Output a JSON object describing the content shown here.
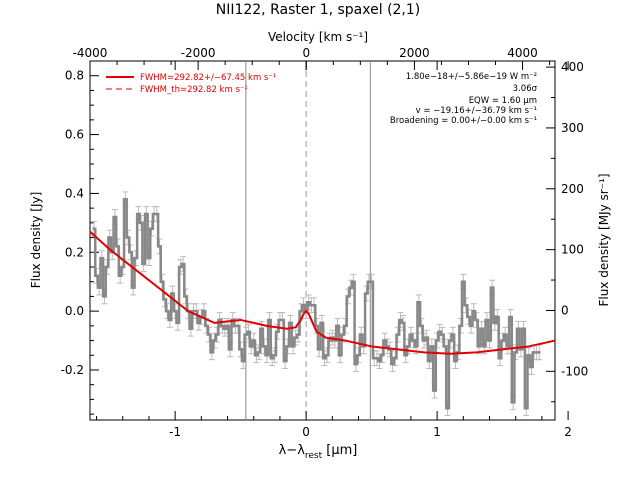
{
  "chart_data": {
    "type": "line",
    "title": "NII122, Raster 1, spaxel (2,1)",
    "xlabel_main": "λ−λ",
    "xlabel_sub": "rest",
    "xlabel_unit": " [μm]",
    "ylabel_left": "Flux density [Jy]",
    "ylabel_right": "Flux density [MJy sr⁻¹]",
    "top_axis_label": "Velocity [km s⁻¹]",
    "xlim": [
      -1.65,
      1.9
    ],
    "ylim": [
      -0.37,
      0.85
    ],
    "top_xlim": [
      -4000,
      4600
    ],
    "right_ylim": [
      -180,
      410
    ],
    "xticks": [
      -1,
      0,
      1,
      2
    ],
    "yticks": [
      -0.2,
      0.0,
      0.2,
      0.4,
      0.6,
      0.8
    ],
    "top_ticks": [
      -4000,
      -2000,
      0,
      2000,
      4000
    ],
    "right_ticks": [
      -100,
      0,
      100,
      200,
      300,
      400
    ],
    "vlines_solid": [
      -0.46,
      0.49
    ],
    "vline_dashed": 0.0,
    "legend": {
      "placement": "top-left",
      "entries": [
        {
          "style": "solid",
          "label": "FWHM=292.82+/−67.45 km s⁻¹"
        },
        {
          "style": "dashed",
          "label": "FWHM_th=292.82 km s⁻¹"
        }
      ]
    },
    "annotations": [
      "1.80e−18+/−5.86e−19 W m⁻²",
      "3.06σ",
      "EQW = 1.60 μm",
      "v = −19.16+/−36.79 km s⁻¹",
      "Broadening = 0.00+/−0.00 km s⁻¹"
    ],
    "series": [
      {
        "style": "step",
        "color": "#888888",
        "x": [
          -1.62,
          -1.6,
          -1.58,
          -1.56,
          -1.54,
          -1.52,
          -1.5,
          -1.48,
          -1.46,
          -1.44,
          -1.42,
          -1.4,
          -1.38,
          -1.36,
          -1.34,
          -1.32,
          -1.3,
          -1.28,
          -1.26,
          -1.24,
          -1.22,
          -1.2,
          -1.18,
          -1.16,
          -1.14,
          -1.12,
          -1.1,
          -1.08,
          -1.06,
          -1.04,
          -1.02,
          -1.0,
          -0.98,
          -0.96,
          -0.94,
          -0.92,
          -0.9,
          -0.88,
          -0.86,
          -0.84,
          -0.82,
          -0.8,
          -0.78,
          -0.76,
          -0.74,
          -0.72,
          -0.7,
          -0.68,
          -0.66,
          -0.64,
          -0.62,
          -0.6,
          -0.58,
          -0.56,
          -0.54,
          -0.52,
          -0.5,
          -0.48,
          -0.46,
          -0.44,
          -0.42,
          -0.4,
          -0.38,
          -0.36,
          -0.34,
          -0.32,
          -0.3,
          -0.28,
          -0.26,
          -0.24,
          -0.22,
          -0.2,
          -0.18,
          -0.16,
          -0.14,
          -0.12,
          -0.1,
          -0.08,
          -0.06,
          -0.04,
          -0.02,
          0.0,
          0.02,
          0.04,
          0.06,
          0.08,
          0.1,
          0.12,
          0.14,
          0.16,
          0.18,
          0.2,
          0.22,
          0.24,
          0.26,
          0.28,
          0.3,
          0.32,
          0.34,
          0.36,
          0.38,
          0.4,
          0.42,
          0.44,
          0.46,
          0.48,
          0.5,
          0.52,
          0.54,
          0.56,
          0.58,
          0.6,
          0.62,
          0.64,
          0.66,
          0.68,
          0.7,
          0.72,
          0.74,
          0.76,
          0.78,
          0.8,
          0.82,
          0.84,
          0.86,
          0.88,
          0.9,
          0.92,
          0.94,
          0.96,
          0.98,
          1.0,
          1.02,
          1.04,
          1.06,
          1.08,
          1.1,
          1.12,
          1.14,
          1.16,
          1.18,
          1.2,
          1.22,
          1.24,
          1.26,
          1.28,
          1.3,
          1.32,
          1.34,
          1.36,
          1.38,
          1.4,
          1.42,
          1.44,
          1.46,
          1.48,
          1.5,
          1.52,
          1.54,
          1.56,
          1.58,
          1.6,
          1.62,
          1.64,
          1.66,
          1.68,
          1.7,
          1.72,
          1.74,
          1.76,
          1.78
        ],
        "y": [
          0.28,
          0.12,
          0.08,
          0.18,
          0.05,
          0.15,
          0.25,
          0.2,
          0.32,
          0.22,
          0.12,
          0.15,
          0.38,
          0.25,
          0.2,
          0.08,
          0.18,
          0.33,
          0.3,
          0.16,
          0.33,
          0.18,
          0.28,
          0.33,
          0.33,
          0.22,
          0.1,
          0.04,
          0.0,
          -0.03,
          0.06,
          0.0,
          -0.04,
          0.15,
          0.16,
          0.05,
          0.0,
          -0.06,
          0.0,
          0.0,
          -0.04,
          -0.02,
          0.0,
          -0.05,
          -0.08,
          -0.14,
          -0.1,
          -0.08,
          -0.03,
          -0.05,
          -0.06,
          -0.05,
          -0.13,
          -0.03,
          -0.05,
          -0.05,
          -0.13,
          -0.17,
          -0.08,
          -0.07,
          -0.12,
          -0.1,
          -0.15,
          -0.14,
          -0.06,
          -0.12,
          -0.15,
          -0.03,
          -0.16,
          -0.15,
          -0.07,
          -0.03,
          -0.03,
          -0.17,
          -0.12,
          -0.04,
          -0.12,
          -0.09,
          -0.08,
          0.0,
          0.02,
          0.0,
          0.03,
          0.02,
          0.02,
          -0.05,
          -0.13,
          -0.04,
          -0.16,
          -0.15,
          -0.1,
          -0.09,
          -0.1,
          -0.05,
          -0.15,
          -0.08,
          -0.05,
          0.05,
          0.08,
          0.1,
          -0.18,
          -0.15,
          -0.08,
          -0.12,
          0.06,
          0.1,
          0.1,
          -0.16,
          -0.16,
          -0.17,
          -0.15,
          -0.1,
          -0.12,
          -0.13,
          -0.18,
          -0.16,
          -0.08,
          -0.03,
          -0.04,
          -0.15,
          -0.12,
          -0.08,
          -0.1,
          -0.12,
          0.03,
          -0.05,
          -0.1,
          -0.09,
          -0.17,
          -0.12,
          -0.27,
          -0.1,
          -0.07,
          -0.08,
          -0.12,
          -0.33,
          -0.1,
          -0.08,
          -0.17,
          -0.14,
          -0.05,
          0.1,
          0.02,
          -0.02,
          -0.05,
          0.0,
          -0.03,
          -0.12,
          -0.06,
          -0.12,
          -0.03,
          -0.1,
          0.08,
          -0.04,
          -0.02,
          -0.16,
          -0.1,
          -0.08,
          -0.12,
          -0.02,
          -0.31,
          -0.14,
          -0.06,
          -0.13,
          -0.06,
          -0.33,
          -0.15,
          -0.19,
          -0.14,
          -0.14,
          -0.14
        ]
      },
      {
        "style": "fit",
        "color": "#e00000",
        "x": [
          -1.65,
          -1.5,
          -1.3,
          -1.1,
          -0.9,
          -0.7,
          -0.5,
          -0.3,
          -0.15,
          -0.08,
          -0.04,
          -0.02,
          0.0,
          0.02,
          0.04,
          0.08,
          0.15,
          0.3,
          0.5,
          0.7,
          0.9,
          1.1,
          1.3,
          1.5,
          1.7,
          1.9
        ],
        "y": [
          0.27,
          0.21,
          0.14,
          0.07,
          0.0,
          -0.04,
          -0.03,
          -0.05,
          -0.06,
          -0.055,
          -0.03,
          -0.01,
          0.0,
          -0.01,
          -0.03,
          -0.07,
          -0.09,
          -0.1,
          -0.12,
          -0.13,
          -0.14,
          -0.145,
          -0.14,
          -0.13,
          -0.12,
          -0.1
        ]
      }
    ]
  }
}
